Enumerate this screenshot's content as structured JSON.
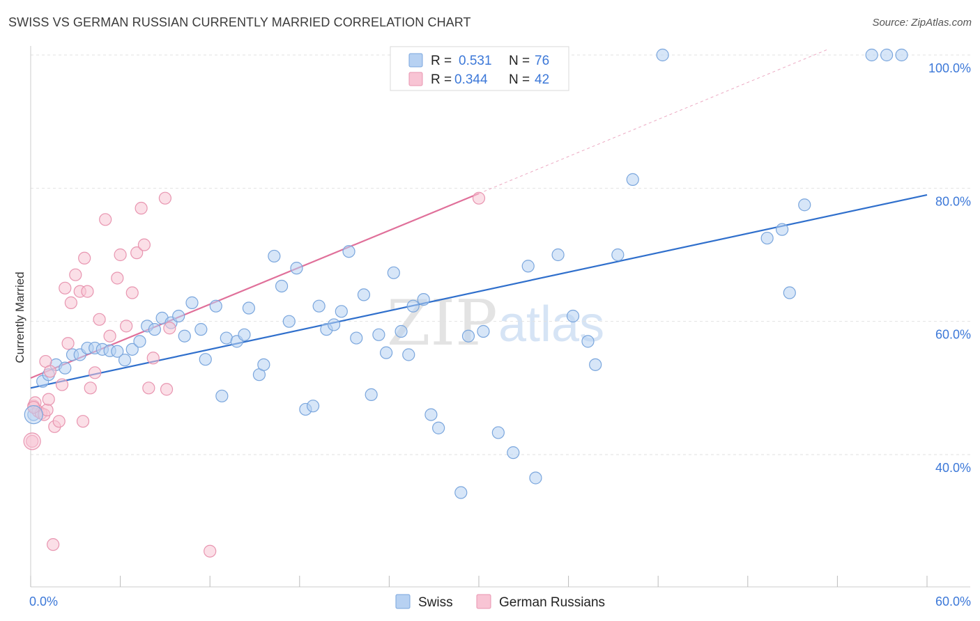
{
  "title": "SWISS VS GERMAN RUSSIAN CURRENTLY MARRIED CORRELATION CHART",
  "source": "Source: ZipAtlas.com",
  "watermark": {
    "zip": "ZIP",
    "atlas": "atlas"
  },
  "colors": {
    "swiss_fill": "#b7d1f2",
    "swiss_stroke": "#7aa6dd",
    "swiss_line": "#2f6fcc",
    "gr_fill": "#f8c4d4",
    "gr_stroke": "#e895b0",
    "gr_line": "#e0709a",
    "axis_label": "#3c78d8",
    "grid": "#e2e2e2"
  },
  "chart_data": {
    "type": "scatter",
    "title": "SWISS VS GERMAN RUSSIAN CURRENTLY MARRIED CORRELATION CHART",
    "xlabel": "",
    "ylabel": "Currently Married",
    "xlim": [
      0,
      60
    ],
    "ylim": [
      20,
      104
    ],
    "x_tick_labels": [
      {
        "value": 0,
        "label": "0.0%"
      },
      {
        "value": 60,
        "label": "60.0%"
      }
    ],
    "y_tick_labels": [
      {
        "value": 100,
        "label": "100.0%"
      },
      {
        "value": 80,
        "label": "80.0%"
      },
      {
        "value": 60,
        "label": "60.0%"
      },
      {
        "value": 40,
        "label": "40.0%"
      }
    ],
    "legend": [
      {
        "name": "Swiss",
        "r_label": "R =",
        "r": "0.531",
        "n_label": "N =",
        "n": "76"
      },
      {
        "name": "German Russians",
        "r_label": "R =",
        "r": "0.344",
        "n_label": "N =",
        "n": "42"
      }
    ],
    "series": [
      {
        "name": "Swiss",
        "trend": {
          "x": [
            0,
            60
          ],
          "y": [
            50.0,
            79.0
          ]
        },
        "points": [
          [
            0.2,
            46
          ],
          [
            0.8,
            51
          ],
          [
            1.2,
            52
          ],
          [
            1.7,
            53.5
          ],
          [
            2.3,
            53
          ],
          [
            2.8,
            55
          ],
          [
            3.3,
            55
          ],
          [
            3.8,
            56
          ],
          [
            4.3,
            56
          ],
          [
            4.8,
            55.8
          ],
          [
            5.3,
            55.6
          ],
          [
            5.8,
            55.5
          ],
          [
            6.3,
            54.2
          ],
          [
            6.8,
            55.8
          ],
          [
            7.3,
            57
          ],
          [
            7.8,
            59.3
          ],
          [
            8.3,
            58.8
          ],
          [
            8.8,
            60.5
          ],
          [
            9.4,
            59.8
          ],
          [
            9.9,
            60.8
          ],
          [
            10.3,
            57.8
          ],
          [
            10.8,
            62.8
          ],
          [
            11.4,
            58.8
          ],
          [
            11.7,
            54.3
          ],
          [
            12.4,
            62.3
          ],
          [
            12.8,
            48.8
          ],
          [
            13.1,
            57.5
          ],
          [
            13.8,
            57
          ],
          [
            14.3,
            58
          ],
          [
            14.6,
            62
          ],
          [
            15.3,
            52
          ],
          [
            15.6,
            53.5
          ],
          [
            16.3,
            69.8
          ],
          [
            16.8,
            65.3
          ],
          [
            17.3,
            60
          ],
          [
            17.8,
            68
          ],
          [
            18.4,
            46.8
          ],
          [
            18.9,
            47.3
          ],
          [
            19.3,
            62.3
          ],
          [
            19.8,
            58.8
          ],
          [
            20.3,
            59.5
          ],
          [
            20.8,
            61.5
          ],
          [
            21.3,
            70.5
          ],
          [
            21.8,
            57.5
          ],
          [
            22.3,
            64
          ],
          [
            22.8,
            49
          ],
          [
            23.3,
            58
          ],
          [
            23.8,
            55.3
          ],
          [
            24.3,
            67.3
          ],
          [
            24.8,
            58.5
          ],
          [
            25.3,
            55
          ],
          [
            25.6,
            62.3
          ],
          [
            26.3,
            63.3
          ],
          [
            26.8,
            46
          ],
          [
            27.3,
            44
          ],
          [
            28.8,
            34.3
          ],
          [
            29.3,
            57.8
          ],
          [
            30.3,
            58.5
          ],
          [
            31.3,
            43.3
          ],
          [
            32.3,
            40.3
          ],
          [
            33.3,
            68.3
          ],
          [
            33.8,
            36.5
          ],
          [
            35.3,
            70
          ],
          [
            36.3,
            60.8
          ],
          [
            37.3,
            57
          ],
          [
            37.8,
            53.5
          ],
          [
            39.3,
            70
          ],
          [
            40.3,
            81.3
          ],
          [
            42.3,
            100
          ],
          [
            49.3,
            72.5
          ],
          [
            50.3,
            73.8
          ],
          [
            50.8,
            64.3
          ],
          [
            51.8,
            77.5
          ],
          [
            56.3,
            100
          ],
          [
            57.3,
            100
          ],
          [
            58.3,
            100
          ]
        ]
      },
      {
        "name": "German Russians",
        "trend": {
          "x": [
            0,
            30
          ],
          "y": [
            51.5,
            79.2
          ]
        },
        "trend_extension": {
          "x": [
            30,
            60
          ],
          "y": [
            79.2,
            107
          ]
        },
        "points": [
          [
            0.1,
            42
          ],
          [
            0.2,
            47.3
          ],
          [
            0.3,
            47.8
          ],
          [
            0.5,
            46.5
          ],
          [
            0.7,
            46.2
          ],
          [
            0.9,
            46
          ],
          [
            1.0,
            54
          ],
          [
            1.1,
            46.7
          ],
          [
            1.2,
            48.3
          ],
          [
            1.3,
            52.5
          ],
          [
            1.6,
            44.2
          ],
          [
            1.9,
            45
          ],
          [
            2.1,
            50.5
          ],
          [
            2.3,
            65
          ],
          [
            2.5,
            56.7
          ],
          [
            2.7,
            62.8
          ],
          [
            3.0,
            67
          ],
          [
            3.3,
            64.5
          ],
          [
            3.5,
            45
          ],
          [
            3.6,
            69.5
          ],
          [
            3.8,
            64.5
          ],
          [
            4.0,
            50
          ],
          [
            4.3,
            52.3
          ],
          [
            4.6,
            60.3
          ],
          [
            5.0,
            75.3
          ],
          [
            5.3,
            57.8
          ],
          [
            5.8,
            66.5
          ],
          [
            6.0,
            70
          ],
          [
            6.4,
            59.3
          ],
          [
            6.8,
            64.3
          ],
          [
            7.1,
            70.3
          ],
          [
            7.4,
            77
          ],
          [
            7.6,
            71.5
          ],
          [
            7.9,
            50
          ],
          [
            8.2,
            54.5
          ],
          [
            9.1,
            49.8
          ],
          [
            9.3,
            59
          ],
          [
            1.5,
            26.5
          ],
          [
            12.0,
            25.5
          ],
          [
            0.2,
            47.1
          ],
          [
            30.0,
            78.5
          ],
          [
            9.0,
            78.5
          ]
        ]
      }
    ]
  }
}
